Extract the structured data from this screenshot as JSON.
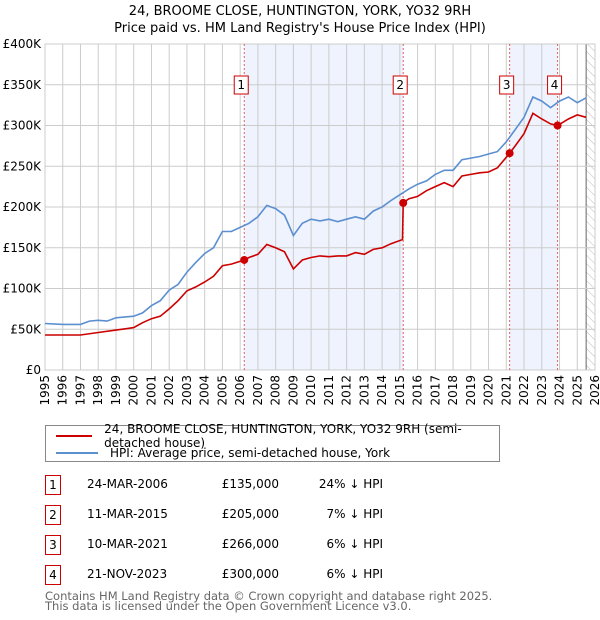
{
  "title": "24, BROOME CLOSE, HUNTINGTON, YORK, YO32 9RH",
  "subtitle": "Price paid vs. HM Land Registry's House Price Index (HPI)",
  "legend": [
    {
      "label": "24, BROOME CLOSE, HUNTINGTON, YORK, YO32 9RH (semi-detached house)",
      "color": "#cc0000"
    },
    {
      "label": "HPI: Average price, semi-detached house, York",
      "color": "#5b8fd0"
    }
  ],
  "sales": [
    {
      "num": "1",
      "date": "24-MAR-2006",
      "price": "£135,000",
      "hpi": "24% ↓ HPI"
    },
    {
      "num": "2",
      "date": "11-MAR-2015",
      "price": "£205,000",
      "hpi": "7% ↓ HPI"
    },
    {
      "num": "3",
      "date": "10-MAR-2021",
      "price": "£266,000",
      "hpi": "6% ↓ HPI"
    },
    {
      "num": "4",
      "date": "21-NOV-2023",
      "price": "£300,000",
      "hpi": "6% ↓ HPI"
    }
  ],
  "footer": [
    "Contains HM Land Registry data © Crown copyright and database right 2025.",
    "This data is licensed under the Open Government Licence v3.0."
  ],
  "chart_data": {
    "type": "line",
    "xlim": [
      1995,
      2026
    ],
    "ylim": [
      0,
      400000
    ],
    "yticks": [
      {
        "v": 0,
        "label": "£0"
      },
      {
        "v": 50000,
        "label": "£50K"
      },
      {
        "v": 100000,
        "label": "£100K"
      },
      {
        "v": 150000,
        "label": "£150K"
      },
      {
        "v": 200000,
        "label": "£200K"
      },
      {
        "v": 250000,
        "label": "£250K"
      },
      {
        "v": 300000,
        "label": "£300K"
      },
      {
        "v": 350000,
        "label": "£350K"
      },
      {
        "v": 400000,
        "label": "£400K"
      }
    ],
    "xticks": [
      "1995",
      "1996",
      "1997",
      "1998",
      "1999",
      "2000",
      "2001",
      "2002",
      "2003",
      "2004",
      "2005",
      "2006",
      "2007",
      "2008",
      "2009",
      "2010",
      "2011",
      "2012",
      "2013",
      "2014",
      "2015",
      "2016",
      "2017",
      "2018",
      "2019",
      "2020",
      "2021",
      "2022",
      "2023",
      "2024",
      "2025",
      "2026"
    ],
    "grid": true,
    "shaded_ranges": [
      [
        2006.23,
        2015.19
      ],
      [
        2021.19,
        2023.89
      ]
    ],
    "hatched_from": 2025.5,
    "sale_points": [
      {
        "x": 2006.23,
        "y": 135000,
        "label": "1"
      },
      {
        "x": 2015.19,
        "y": 205000,
        "label": "2"
      },
      {
        "x": 2021.19,
        "y": 266000,
        "label": "3"
      },
      {
        "x": 2023.89,
        "y": 300000,
        "label": "4"
      }
    ],
    "series": [
      {
        "name": "24, BROOME CLOSE, HUNTINGTON, YORK, YO32 9RH (semi-detached house)",
        "color": "#cc0000",
        "x": [
          1995,
          1996,
          1997,
          1998,
          1999,
          2000,
          2000.5,
          2001,
          2001.5,
          2002,
          2002.5,
          2003,
          2003.5,
          2004,
          2004.5,
          2005,
          2005.5,
          2006.23,
          2006.5,
          2007,
          2007.5,
          2008,
          2008.5,
          2009,
          2009.5,
          2010,
          2010.5,
          2011,
          2011.5,
          2012,
          2012.5,
          2013,
          2013.5,
          2014,
          2014.5,
          2015.15,
          2015.19,
          2015.5,
          2016,
          2016.5,
          2017,
          2017.5,
          2018,
          2018.5,
          2019,
          2019.5,
          2020,
          2020.5,
          2021.19,
          2021.5,
          2022,
          2022.5,
          2023,
          2023.5,
          2023.89,
          2024.5,
          2025,
          2025.5
        ],
        "y": [
          43000,
          43000,
          43000,
          46000,
          49000,
          52000,
          58000,
          63000,
          66000,
          75000,
          85000,
          97000,
          102000,
          108000,
          115000,
          128000,
          130000,
          135000,
          138000,
          142000,
          154000,
          150000,
          145000,
          124000,
          135000,
          138000,
          140000,
          139000,
          140000,
          140000,
          144000,
          142000,
          148000,
          150000,
          155000,
          160000,
          205000,
          210000,
          213000,
          220000,
          225000,
          230000,
          225000,
          238000,
          240000,
          242000,
          243000,
          248000,
          266000,
          275000,
          290000,
          315000,
          308000,
          302000,
          300000,
          308000,
          313000,
          310000
        ]
      },
      {
        "name": "HPI: Average price, semi-detached house, York",
        "color": "#5b8fd0",
        "x": [
          1995,
          1996,
          1997,
          1997.5,
          1998,
          1998.5,
          1999,
          2000,
          2000.5,
          2001,
          2001.5,
          2002,
          2002.5,
          2003,
          2003.5,
          2004,
          2004.5,
          2005,
          2005.5,
          2006,
          2006.5,
          2007,
          2007.5,
          2008,
          2008.5,
          2009,
          2009.5,
          2010,
          2010.5,
          2011,
          2011.5,
          2012,
          2012.5,
          2013,
          2013.5,
          2014,
          2014.5,
          2015,
          2015.5,
          2016,
          2016.5,
          2017,
          2017.5,
          2018,
          2018.5,
          2019,
          2019.5,
          2020,
          2020.5,
          2021,
          2021.5,
          2022,
          2022.5,
          2023,
          2023.5,
          2024,
          2024.5,
          2025,
          2025.5
        ],
        "y": [
          57000,
          56000,
          56000,
          60000,
          61000,
          60000,
          64000,
          66000,
          70000,
          79000,
          85000,
          98000,
          105000,
          120000,
          132000,
          143000,
          150000,
          170000,
          170000,
          175000,
          180000,
          188000,
          202000,
          198000,
          190000,
          165000,
          180000,
          185000,
          183000,
          185000,
          182000,
          185000,
          188000,
          185000,
          195000,
          200000,
          208000,
          215000,
          222000,
          228000,
          232000,
          240000,
          245000,
          245000,
          258000,
          260000,
          262000,
          265000,
          268000,
          280000,
          295000,
          310000,
          335000,
          330000,
          322000,
          330000,
          335000,
          328000,
          334000
        ]
      }
    ]
  }
}
